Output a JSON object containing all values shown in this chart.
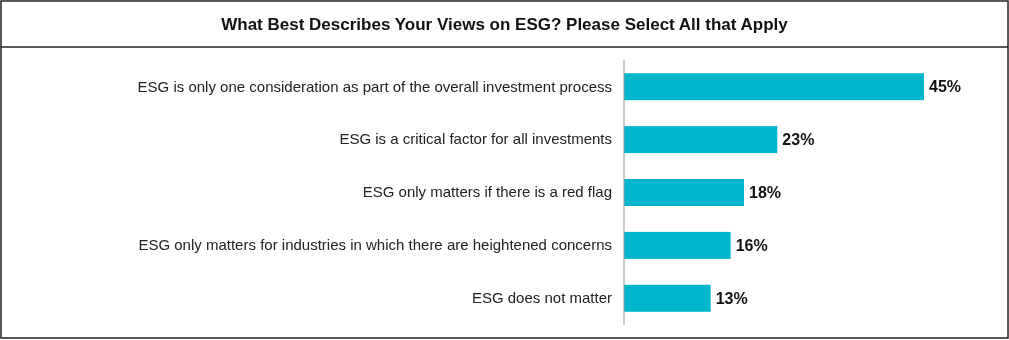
{
  "chart_data": {
    "type": "bar",
    "orientation": "horizontal",
    "title": "What Best Describes Your Views on ESG? Please Select All that Apply",
    "categories": [
      "ESG is only one consideration as part of the overall investment process",
      "ESG is a critical factor for all investments",
      "ESG only matters if there is a red flag",
      "ESG only matters for industries in which there are heightened concerns",
      "ESG does not matter"
    ],
    "values": [
      45,
      23,
      18,
      16,
      13
    ],
    "value_labels": [
      "45%",
      "23%",
      "18%",
      "16%",
      "13%"
    ],
    "color": "#00b5cc",
    "tick_labels": "y"
  }
}
